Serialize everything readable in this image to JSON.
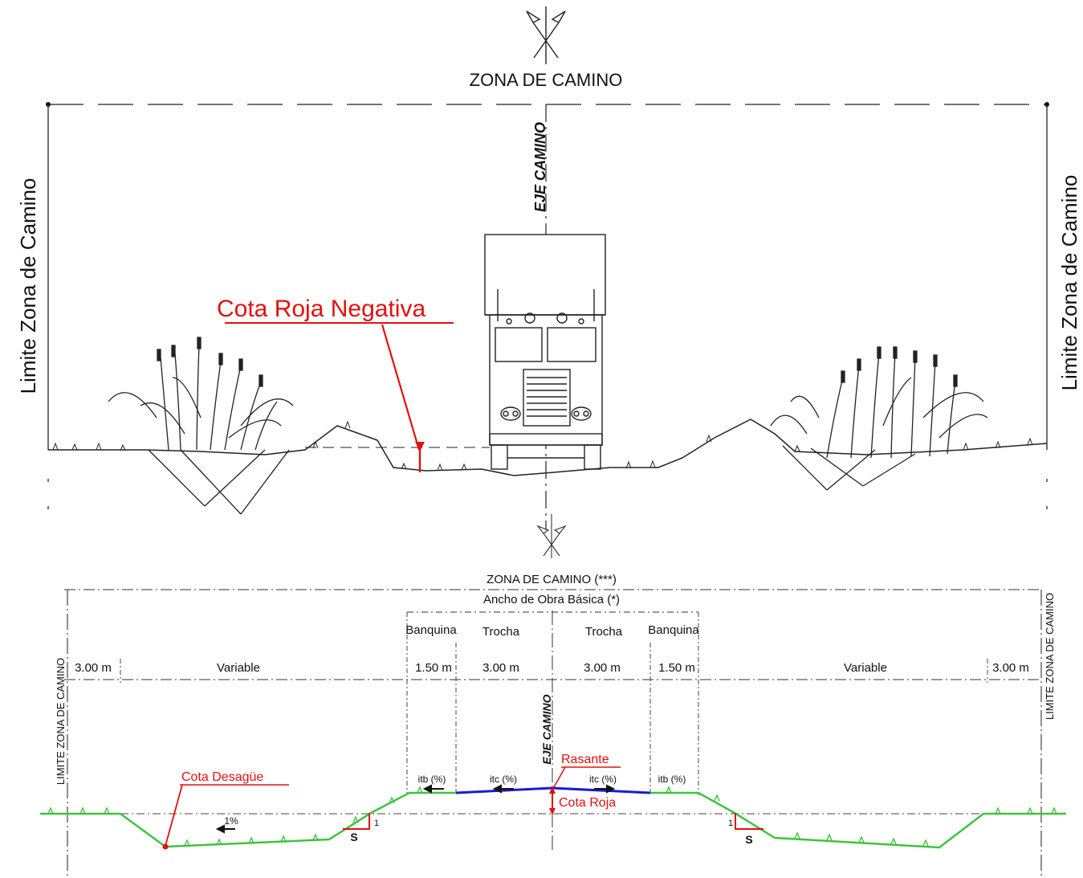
{
  "colors": {
    "ink": "#111111",
    "annotation_red": "#e11010",
    "pavement_blue": "#1a1ad6",
    "grass_green": "#3ec43e"
  },
  "top_section": {
    "title": "ZONA DE CAMINO",
    "axis_label": "EJE CAMINO",
    "left_limit_label": "Limite Zona de Camino",
    "right_limit_label": "Limite Zona de Camino",
    "annotation": "Cota Roja Negativa"
  },
  "bottom_section": {
    "title": "ZONA DE CAMINO (***)",
    "subtitle": "Ancho de Obra Básica (*)",
    "axis_label": "EJE CAMINO",
    "left_limit_label": "LIMITE ZONA DE CAMINO",
    "right_limit_label": "LIMITE ZONA DE CAMINO",
    "band_labels": {
      "banquina_left": "Banquina",
      "trocha_left": "Trocha",
      "trocha_right": "Trocha",
      "banquina_right": "Banquina"
    },
    "dimensions": {
      "left_edge": "3.00 m",
      "left_variable": "Variable",
      "left_banquina": "1.50 m",
      "left_trocha": "3.00 m",
      "right_trocha": "3.00 m",
      "right_banquina": "1.50 m",
      "right_variable": "Variable",
      "right_edge": "3.00 m"
    },
    "slopes": {
      "itb_left": "itb (%)",
      "itc_left": "itc (%)",
      "itc_right": "itc (%)",
      "itb_right": "itb (%)",
      "ditch_slope": "1%",
      "left_rise": "1",
      "left_run": "S",
      "right_rise": "1",
      "right_run": "S"
    },
    "annotations": {
      "rasante": "Rasante",
      "cota_roja": "Cota Roja",
      "cota_desague": "Cota Desagüe"
    }
  }
}
